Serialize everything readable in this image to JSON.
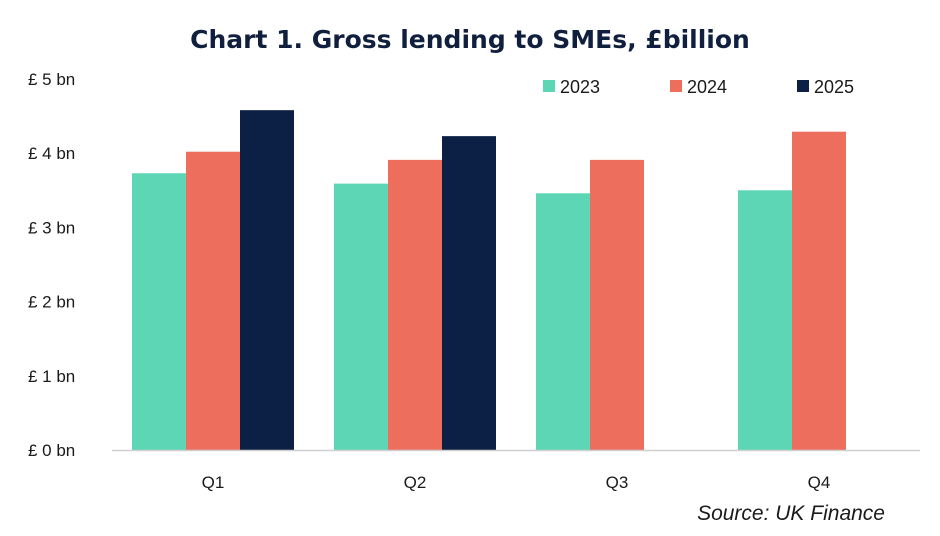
{
  "chart_data": {
    "type": "bar",
    "title": "Chart 1. Gross lending to SMEs, £billion",
    "categories": [
      "Q1",
      "Q2",
      "Q3",
      "Q4"
    ],
    "series": [
      {
        "name": "2023",
        "color": "#5dd6b6",
        "values": [
          3.73,
          3.59,
          3.46,
          3.5
        ]
      },
      {
        "name": "2024",
        "color": "#ee6e5e",
        "values": [
          4.02,
          3.91,
          3.91,
          4.29
        ]
      },
      {
        "name": "2025",
        "color": "#0c1f44",
        "values": [
          4.58,
          4.23,
          null,
          null
        ]
      }
    ],
    "ylim": [
      0,
      5
    ],
    "y_ticks": [
      {
        "value": 0,
        "label": "£ 0 bn"
      },
      {
        "value": 1,
        "label": "£ 1 bn"
      },
      {
        "value": 2,
        "label": "£ 2 bn"
      },
      {
        "value": 3,
        "label": "£ 3 bn"
      },
      {
        "value": 4,
        "label": "£ 4 bn"
      },
      {
        "value": 5,
        "label": "£ 5 bn"
      }
    ],
    "xlabel": "",
    "ylabel": "",
    "grid": false,
    "legend_position": "top-right",
    "source": "Source: UK Finance"
  }
}
